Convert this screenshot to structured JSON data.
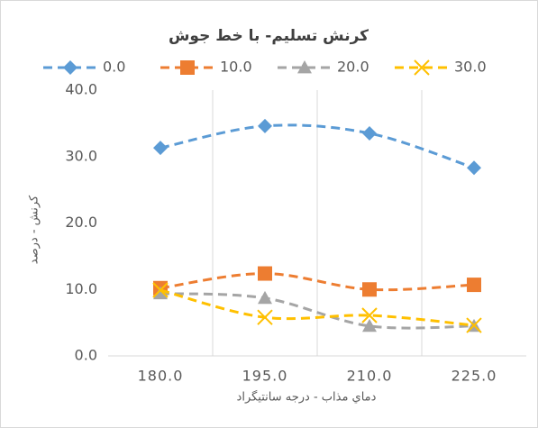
{
  "chart_data": {
    "type": "line",
    "title": "کرنش تسلیم- با خط جوش",
    "x_label": "دماي مذاب - درجه سانتيگراد",
    "y_label": "کرنش - درصد",
    "categories": [
      "180.0",
      "195.0",
      "210.0",
      "225.0"
    ],
    "series": [
      {
        "name": "0.0",
        "color": "#5b9bd5",
        "marker": "diamond",
        "values": [
          31.3,
          34.6,
          33.5,
          28.3
        ]
      },
      {
        "name": "10.0",
        "color": "#ed7d31",
        "marker": "square",
        "values": [
          10.2,
          12.4,
          10.0,
          10.7
        ]
      },
      {
        "name": "20.0",
        "color": "#a5a5a5",
        "marker": "triangle",
        "values": [
          9.4,
          8.7,
          4.5,
          4.5
        ]
      },
      {
        "name": "30.0",
        "color": "#ffc000",
        "marker": "x",
        "values": [
          9.9,
          5.8,
          6.1,
          4.6
        ]
      }
    ],
    "ylim": [
      0,
      40
    ],
    "yticks": [
      {
        "value": 0,
        "label": "0.0"
      },
      {
        "value": 10,
        "label": "10.0"
      },
      {
        "value": 20,
        "label": "20.0"
      },
      {
        "value": 30,
        "label": "30.0"
      },
      {
        "value": 40,
        "label": "40.0"
      }
    ],
    "xgrid": true,
    "smooth": true,
    "dashed": true,
    "legend": "top"
  }
}
